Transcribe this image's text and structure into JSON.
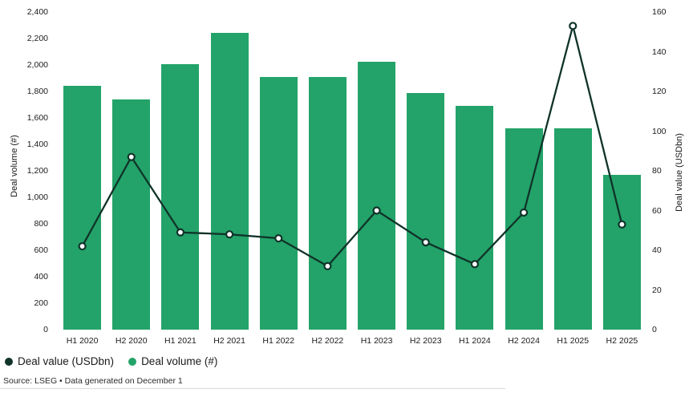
{
  "chart_data": {
    "type": "bar",
    "subtype": "bar-line-combo",
    "categories": [
      "H1 2020",
      "H2 2020",
      "H1 2021",
      "H2 2021",
      "H1 2022",
      "H2 2022",
      "H1 2023",
      "H2 2023",
      "H1 2024",
      "H2 2024",
      "H1 2025",
      "H2 2025"
    ],
    "series": [
      {
        "name": "Deal volume (#)",
        "type": "bar",
        "axis": "left",
        "color": "#23a369",
        "values": [
          1840,
          1740,
          2005,
          2245,
          1910,
          1910,
          2025,
          1790,
          1690,
          1520,
          1520,
          1170
        ]
      },
      {
        "name": "Deal value (USDbn)",
        "type": "line",
        "axis": "right",
        "color": "#10332a",
        "marker_fill": "#ffffff",
        "values": [
          42,
          87,
          49,
          48,
          46,
          32,
          60,
          44,
          33,
          59,
          153,
          53
        ]
      }
    ],
    "left_axis": {
      "label": "Deal volume (#)",
      "min": 0,
      "max": 2400,
      "step": 200
    },
    "right_axis": {
      "label": "Deal value (USDbn)",
      "min": 0,
      "max": 160,
      "step": 20
    },
    "grid": false,
    "legend_position": "bottom-left",
    "title": ""
  },
  "legend": {
    "items": [
      {
        "label": "Deal value (USDbn)",
        "color": "#10332a"
      },
      {
        "label": "Deal volume (#)",
        "color": "#23a369"
      }
    ]
  },
  "source_text": "Source: LSEG • Data generated on December 1"
}
